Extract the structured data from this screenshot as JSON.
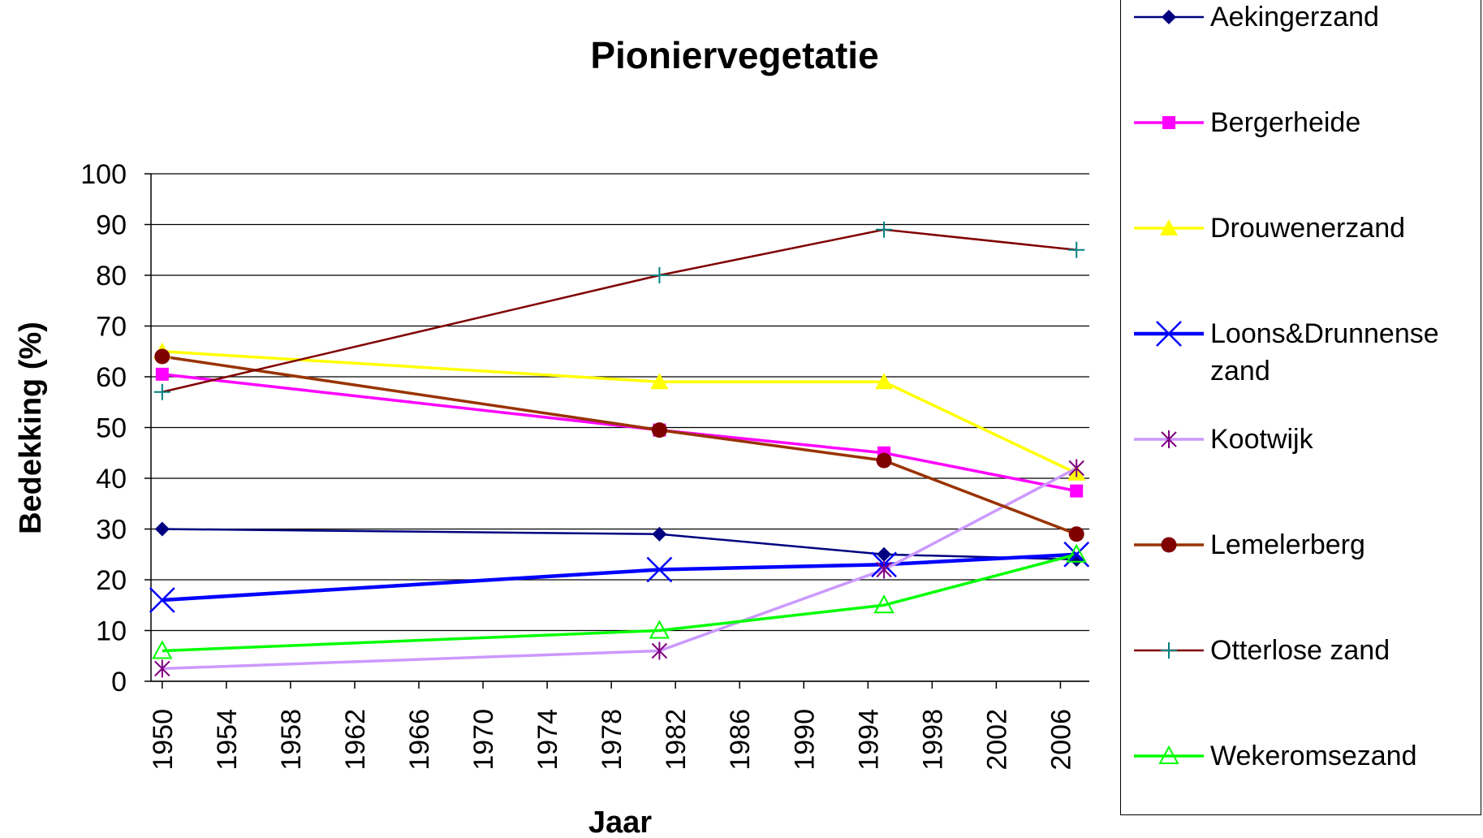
{
  "chart_data": {
    "type": "line",
    "title": "Pioniervegetatie",
    "x_label": "Jaar",
    "y_label": "Bedekking (%)",
    "x": [
      1950,
      1981,
      1995,
      2007
    ],
    "xlim": [
      1949.3,
      2007.8
    ],
    "xticks": [
      1950,
      1954,
      1958,
      1962,
      1966,
      1970,
      1974,
      1978,
      1982,
      1986,
      1990,
      1994,
      1998,
      2002,
      2006
    ],
    "ylim": [
      0,
      100
    ],
    "yticks": [
      0,
      10,
      20,
      30,
      40,
      50,
      60,
      70,
      80,
      90,
      100
    ],
    "grid": true,
    "legend": "right",
    "series": [
      {
        "name": "Aekingerzand",
        "color": "#000080",
        "marker": "diamond",
        "values": [
          30,
          29,
          25,
          24
        ]
      },
      {
        "name": "Bergerheide",
        "color": "#ff00ff",
        "marker": "square",
        "values": [
          60.5,
          49.5,
          45,
          37.5
        ]
      },
      {
        "name": "Drouwenerzand",
        "color": "#ffff00",
        "marker": "triangle",
        "values": [
          65,
          59,
          59,
          41
        ]
      },
      {
        "name": "Loons&Drunnense zand",
        "color": "#0000ff",
        "marker": "x",
        "values": [
          16,
          22,
          23,
          25
        ]
      },
      {
        "name": "Kootwijk",
        "color": "#cc99ff",
        "marker_color": "#800080",
        "marker": "asterisk",
        "values": [
          2.5,
          6,
          22,
          42
        ]
      },
      {
        "name": "Lemelerberg",
        "color": "#993300",
        "marker_color": "#800000",
        "marker": "circle",
        "values": [
          64,
          49.5,
          43.5,
          29
        ]
      },
      {
        "name": "Otterlose zand",
        "color": "#800000",
        "marker_color": "#008080",
        "marker": "plus",
        "values": [
          57,
          80,
          89,
          85
        ]
      },
      {
        "name": "Wekeromsezand",
        "color": "#00ff00",
        "marker": "open-triangle",
        "values": [
          6,
          10,
          15,
          25
        ]
      }
    ]
  }
}
